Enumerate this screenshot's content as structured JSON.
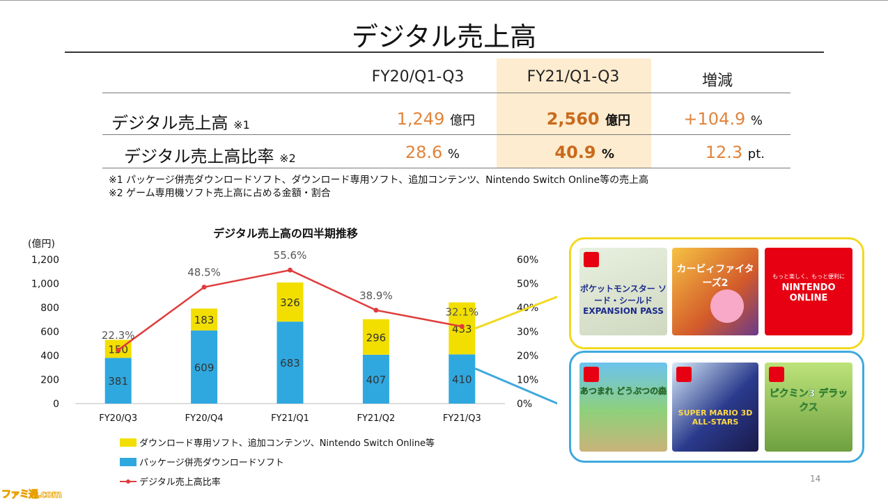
{
  "title": "デジタル売上高",
  "table": {
    "headers": [
      "FY20/Q1-Q3",
      "FY21/Q1-Q3",
      "増減"
    ],
    "rows": [
      {
        "label": "デジタル売上高",
        "note": "※1",
        "fy20": "1,249",
        "fy20_unit": "億円",
        "fy21": "2,560",
        "fy21_unit": "億円",
        "change": "+104.9",
        "change_unit": "%"
      },
      {
        "label": "デジタル売上高比率",
        "note": "※2",
        "fy20": "28.6",
        "fy20_unit": "%",
        "fy21": "40.9",
        "fy21_unit": "%",
        "change": "12.3",
        "change_unit": "pt."
      }
    ]
  },
  "footnotes": [
    "※1 パッケージ併売ダウンロードソフト、ダウンロード専用ソフト、追加コンテンツ、Nintendo Switch Online等の売上高",
    "※2 ゲーム専用機ソフト売上高に占める金額・割合"
  ],
  "chart_data": {
    "type": "bar",
    "title": "デジタル売上高の四半期推移",
    "ylabel_left": "(億円)",
    "categories": [
      "FY20/Q3",
      "FY20/Q4",
      "FY21/Q1",
      "FY21/Q2",
      "FY21/Q3"
    ],
    "yticks_left": [
      "0",
      "200",
      "400",
      "600",
      "800",
      "1,000",
      "1,200"
    ],
    "yticks_right": [
      "0%",
      "10%",
      "20%",
      "30%",
      "40%",
      "50%",
      "60%"
    ],
    "ylim_left": [
      0,
      1200
    ],
    "ylim_right": [
      0,
      60
    ],
    "stacked": true,
    "series": [
      {
        "name": "パッケージ併売ダウンロードソフト",
        "color": "#2fa8e0",
        "values": [
          381,
          609,
          683,
          407,
          410
        ],
        "labels": [
          "381",
          "609",
          "683",
          "407",
          "410"
        ]
      },
      {
        "name": "ダウンロード専用ソフト、追加コンテンツ、Nintendo Switch Online等",
        "color": "#f2df00",
        "values": [
          150,
          183,
          326,
          296,
          433
        ],
        "labels": [
          "150",
          "183",
          "326",
          "296",
          "433"
        ]
      },
      {
        "name": "デジタル売上高比率",
        "color": "#e03c3c",
        "type": "line",
        "axis": "right",
        "values": [
          22.3,
          48.5,
          55.6,
          38.9,
          32.1
        ],
        "labels": [
          "22.3%",
          "48.5%",
          "55.6%",
          "38.9%",
          "32.1%"
        ]
      }
    ],
    "legend_order": [
      1,
      0,
      2
    ],
    "legend_position": "bottom-left"
  },
  "products_digital": [
    {
      "name": "ポケットモンスター ソード・シールド EXPANSION PASS",
      "switch": "SWITCH"
    },
    {
      "name": "カービィファイターズ2",
      "switch": ""
    },
    {
      "name": "NINTENDO ONLINE",
      "tagline": "もっと楽しく、もっと便利に",
      "switch": ""
    }
  ],
  "products_package": [
    {
      "name": "あつまれ どうぶつの森",
      "switch": "SWITCH"
    },
    {
      "name": "SUPER MARIO 3D ALL-STARS",
      "switch": ""
    },
    {
      "name": "ピクミン3 デラックス",
      "switch": "SWITCH"
    }
  ],
  "page_number": "14",
  "watermark": "ファミ通.com",
  "colors": {
    "accent_orange": "#e0843c",
    "highlight": "#fdeccf",
    "yellow": "#f2df00",
    "blue": "#2fa8e0",
    "red": "#e03c3c"
  }
}
